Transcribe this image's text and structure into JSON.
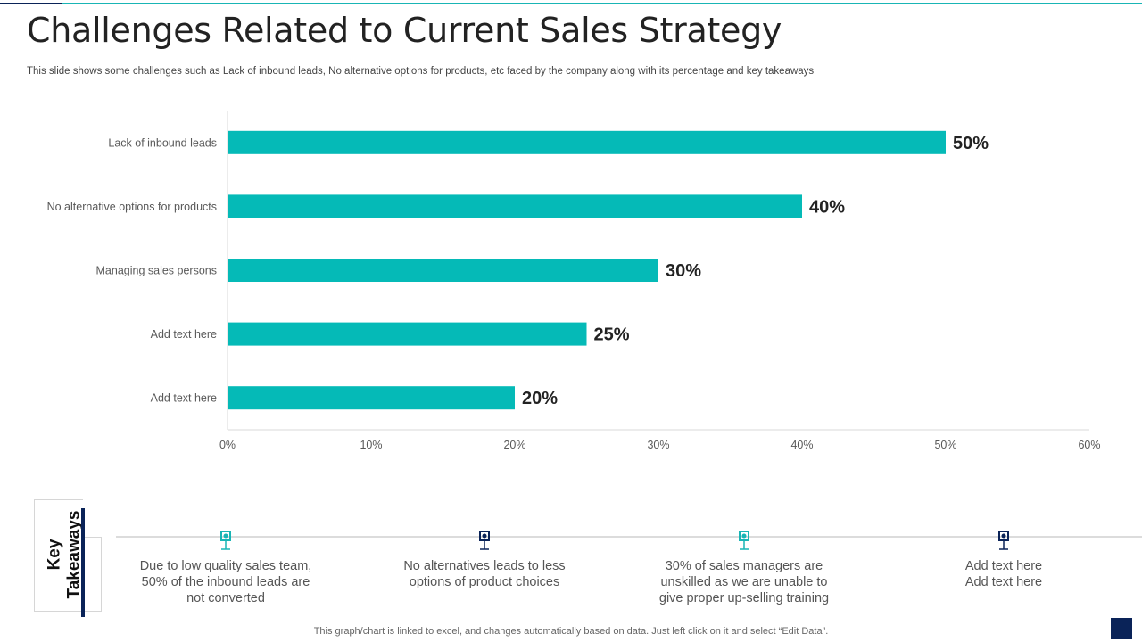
{
  "slide": {
    "title": "Challenges Related to Current Sales Strategy",
    "subtitle": "This slide shows some challenges such as Lack of inbound leads, No alternative options for products, etc faced by the company along with its percentage and key takeaways",
    "footnote": "This graph/chart is linked to excel,  and changes automatically based on data. Just left click on it and select “Edit Data”."
  },
  "colors": {
    "bar": "#05bab7",
    "accent_navy": "#0a2358",
    "accent_teal": "#19b5b5"
  },
  "chart_data": {
    "type": "bar",
    "orientation": "horizontal",
    "categories": [
      "Lack of inbound leads",
      "No alternative options for products",
      "Managing sales persons",
      "Add text here",
      "Add text here"
    ],
    "values": [
      50,
      40,
      30,
      25,
      20
    ],
    "data_labels": [
      "50%",
      "40%",
      "30%",
      "25%",
      "20%"
    ],
    "xlim": [
      0,
      60
    ],
    "x_ticks": [
      0,
      10,
      20,
      30,
      40,
      50,
      60
    ],
    "x_tick_labels": [
      "0%",
      "10%",
      "20%",
      "30%",
      "40%",
      "50%",
      "60%"
    ],
    "grid": false,
    "legend": "none"
  },
  "key_takeaways": {
    "label": "Key\nTakeaways",
    "items": [
      {
        "text": "Due to low quality sales team,\n50% of the inbound leads are\nnot converted",
        "marker_color": "#19b5b5"
      },
      {
        "text": "No alternatives leads to less\noptions of product choices",
        "marker_color": "#0a2358"
      },
      {
        "text": "30% of sales managers are\nunskilled as we are unable to\ngive proper up-selling training",
        "marker_color": "#19b5b5"
      },
      {
        "text": "Add text here\nAdd text here",
        "marker_color": "#0a2358"
      }
    ]
  }
}
